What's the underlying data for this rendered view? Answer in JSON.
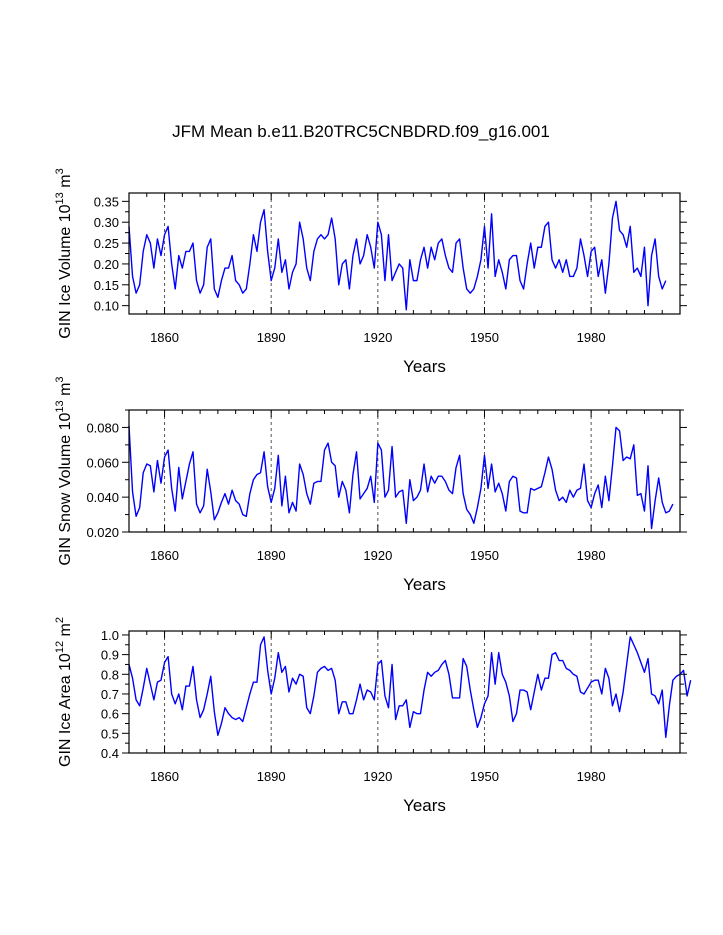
{
  "title": "JFM Mean b.e11.B20TRC5CNBDRD.f09_g16.001",
  "colors": {
    "series": "#0000ff",
    "axes": "#000000",
    "grid": "#555555"
  },
  "chart_data": [
    {
      "type": "line",
      "ylabel_main": "GIN Ice Volume 10",
      "ylabel_exp": "13",
      "ylabel_unit": " m",
      "ylabel_unit_exp": "3",
      "xlabel": "Years",
      "xlim": [
        1850,
        2005
      ],
      "ylim": [
        0.08,
        0.37
      ],
      "xticks": [
        1860,
        1890,
        1920,
        1950,
        1980
      ],
      "xtick_labels": [
        "1860",
        "1890",
        "1920",
        "1950",
        "1980"
      ],
      "yticks": [
        0.1,
        0.15,
        0.2,
        0.25,
        0.3,
        0.35
      ],
      "ytick_labels": [
        "0.10",
        "0.15",
        "0.20",
        "0.25",
        "0.30",
        "0.35"
      ],
      "grid_x": [
        1860,
        1890,
        1920,
        1950,
        1980
      ],
      "x_start": 1850,
      "values": [
        0.29,
        0.17,
        0.13,
        0.15,
        0.23,
        0.27,
        0.25,
        0.19,
        0.26,
        0.22,
        0.27,
        0.29,
        0.2,
        0.14,
        0.22,
        0.19,
        0.23,
        0.23,
        0.25,
        0.16,
        0.13,
        0.15,
        0.24,
        0.26,
        0.14,
        0.12,
        0.16,
        0.19,
        0.19,
        0.22,
        0.16,
        0.15,
        0.13,
        0.14,
        0.2,
        0.27,
        0.23,
        0.3,
        0.33,
        0.23,
        0.16,
        0.19,
        0.26,
        0.18,
        0.21,
        0.14,
        0.18,
        0.2,
        0.3,
        0.26,
        0.19,
        0.16,
        0.23,
        0.26,
        0.27,
        0.26,
        0.27,
        0.31,
        0.26,
        0.15,
        0.2,
        0.21,
        0.14,
        0.22,
        0.26,
        0.2,
        0.22,
        0.27,
        0.24,
        0.19,
        0.3,
        0.27,
        0.16,
        0.27,
        0.16,
        0.18,
        0.2,
        0.19,
        0.09,
        0.21,
        0.16,
        0.16,
        0.21,
        0.24,
        0.19,
        0.24,
        0.21,
        0.25,
        0.26,
        0.22,
        0.19,
        0.18,
        0.25,
        0.26,
        0.19,
        0.14,
        0.13,
        0.14,
        0.17,
        0.21,
        0.29,
        0.19,
        0.32,
        0.17,
        0.21,
        0.18,
        0.14,
        0.21,
        0.22,
        0.22,
        0.16,
        0.14,
        0.2,
        0.25,
        0.19,
        0.24,
        0.24,
        0.29,
        0.3,
        0.21,
        0.19,
        0.21,
        0.18,
        0.21,
        0.17,
        0.17,
        0.19,
        0.26,
        0.22,
        0.17,
        0.23,
        0.24,
        0.17,
        0.21,
        0.13,
        0.2,
        0.31,
        0.35,
        0.28,
        0.27,
        0.24,
        0.29,
        0.18,
        0.19,
        0.17,
        0.24,
        0.1,
        0.22,
        0.26,
        0.17,
        0.14,
        0.16
      ]
    },
    {
      "type": "line",
      "ylabel_main": "GIN Snow Volume 10",
      "ylabel_exp": "13",
      "ylabel_unit": " m",
      "ylabel_unit_exp": "3",
      "xlabel": "Years",
      "xlim": [
        1850,
        2005
      ],
      "ylim": [
        0.02,
        0.09
      ],
      "xticks": [
        1860,
        1890,
        1920,
        1950,
        1980
      ],
      "xtick_labels": [
        "1860",
        "1890",
        "1920",
        "1950",
        "1980"
      ],
      "yticks": [
        0.02,
        0.04,
        0.06,
        0.08
      ],
      "ytick_labels": [
        "0.020",
        "0.040",
        "0.060",
        "0.080"
      ],
      "grid_x": [
        1860,
        1890,
        1920,
        1950,
        1980
      ],
      "x_start": 1850,
      "values": [
        0.081,
        0.043,
        0.029,
        0.034,
        0.054,
        0.059,
        0.058,
        0.043,
        0.061,
        0.048,
        0.063,
        0.067,
        0.045,
        0.032,
        0.057,
        0.039,
        0.049,
        0.059,
        0.066,
        0.036,
        0.031,
        0.035,
        0.056,
        0.043,
        0.027,
        0.031,
        0.037,
        0.042,
        0.036,
        0.044,
        0.038,
        0.036,
        0.03,
        0.029,
        0.042,
        0.05,
        0.053,
        0.054,
        0.066,
        0.046,
        0.037,
        0.045,
        0.064,
        0.035,
        0.052,
        0.031,
        0.037,
        0.032,
        0.059,
        0.053,
        0.042,
        0.036,
        0.048,
        0.049,
        0.049,
        0.067,
        0.071,
        0.06,
        0.058,
        0.04,
        0.049,
        0.044,
        0.031,
        0.053,
        0.066,
        0.039,
        0.042,
        0.045,
        0.052,
        0.037,
        0.071,
        0.067,
        0.04,
        0.044,
        0.069,
        0.04,
        0.043,
        0.044,
        0.025,
        0.05,
        0.038,
        0.04,
        0.044,
        0.059,
        0.043,
        0.052,
        0.048,
        0.052,
        0.052,
        0.049,
        0.044,
        0.042,
        0.057,
        0.064,
        0.042,
        0.033,
        0.03,
        0.025,
        0.034,
        0.045,
        0.064,
        0.045,
        0.059,
        0.043,
        0.048,
        0.042,
        0.032,
        0.049,
        0.052,
        0.051,
        0.032,
        0.031,
        0.031,
        0.045,
        0.044,
        0.045,
        0.046,
        0.054,
        0.063,
        0.056,
        0.044,
        0.038,
        0.04,
        0.037,
        0.044,
        0.04,
        0.044,
        0.045,
        0.059,
        0.038,
        0.034,
        0.042,
        0.047,
        0.034,
        0.052,
        0.038,
        0.058,
        0.08,
        0.078,
        0.061,
        0.063,
        0.062,
        0.07,
        0.041,
        0.042,
        0.032,
        0.058,
        0.022,
        0.038,
        0.051,
        0.037,
        0.031,
        0.032,
        0.036
      ]
    },
    {
      "type": "line",
      "ylabel_main": "GIN Ice Area 10",
      "ylabel_exp": "12",
      "ylabel_unit": " m",
      "ylabel_unit_exp": "2",
      "xlabel": "Years",
      "xlim": [
        1850,
        2005
      ],
      "ylim": [
        0.4,
        1.02
      ],
      "xticks": [
        1860,
        1890,
        1920,
        1950,
        1980
      ],
      "xtick_labels": [
        "1860",
        "1890",
        "1920",
        "1950",
        "1980"
      ],
      "yticks": [
        0.4,
        0.5,
        0.6,
        0.7,
        0.8,
        0.9,
        1.0
      ],
      "ytick_labels": [
        "0.4",
        "0.5",
        "0.6",
        "0.7",
        "0.8",
        "0.9",
        "1.0"
      ],
      "grid_x": [
        1860,
        1890,
        1920,
        1950,
        1980
      ],
      "x_start": 1850,
      "values": [
        0.85,
        0.78,
        0.67,
        0.64,
        0.73,
        0.83,
        0.75,
        0.67,
        0.76,
        0.77,
        0.86,
        0.89,
        0.7,
        0.65,
        0.7,
        0.62,
        0.74,
        0.74,
        0.84,
        0.67,
        0.58,
        0.62,
        0.7,
        0.79,
        0.61,
        0.49,
        0.55,
        0.63,
        0.6,
        0.58,
        0.57,
        0.58,
        0.56,
        0.63,
        0.7,
        0.76,
        0.76,
        0.95,
        0.99,
        0.82,
        0.7,
        0.78,
        0.91,
        0.81,
        0.84,
        0.71,
        0.78,
        0.75,
        0.8,
        0.79,
        0.63,
        0.6,
        0.69,
        0.81,
        0.83,
        0.84,
        0.82,
        0.83,
        0.77,
        0.6,
        0.66,
        0.66,
        0.6,
        0.6,
        0.67,
        0.75,
        0.67,
        0.72,
        0.71,
        0.67,
        0.85,
        0.87,
        0.69,
        0.63,
        0.85,
        0.57,
        0.64,
        0.64,
        0.67,
        0.53,
        0.61,
        0.6,
        0.6,
        0.72,
        0.81,
        0.79,
        0.81,
        0.82,
        0.85,
        0.87,
        0.8,
        0.68,
        0.68,
        0.68,
        0.88,
        0.84,
        0.72,
        0.62,
        0.53,
        0.58,
        0.65,
        0.69,
        0.91,
        0.75,
        0.91,
        0.8,
        0.76,
        0.69,
        0.56,
        0.6,
        0.72,
        0.72,
        0.71,
        0.62,
        0.71,
        0.8,
        0.72,
        0.78,
        0.78,
        0.9,
        0.91,
        0.87,
        0.87,
        0.83,
        0.82,
        0.8,
        0.79,
        0.71,
        0.7,
        0.73,
        0.76,
        0.77,
        0.77,
        0.7,
        0.83,
        0.78,
        0.64,
        0.7,
        0.61,
        0.71,
        0.85,
        0.99,
        0.95,
        0.91,
        0.86,
        0.81,
        0.88,
        0.7,
        0.69,
        0.65,
        0.72,
        0.48,
        0.64,
        0.77,
        0.79,
        0.8,
        0.82,
        0.69,
        0.77
      ]
    }
  ]
}
